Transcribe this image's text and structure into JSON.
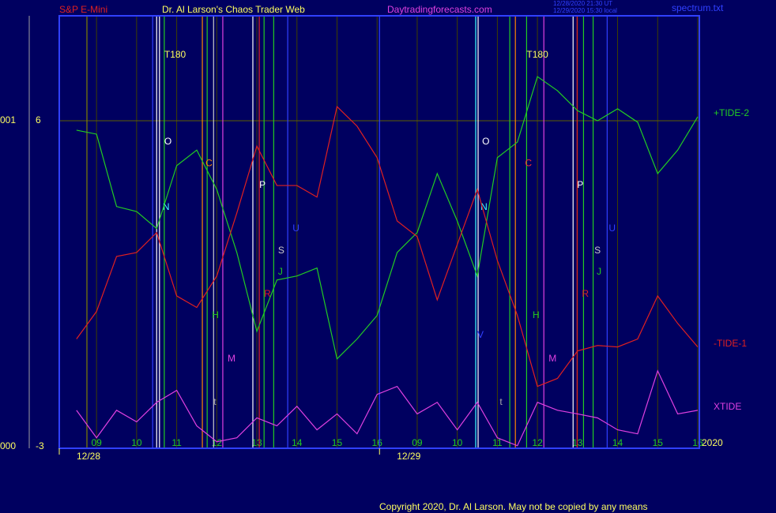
{
  "chart_data": {
    "type": "line",
    "header": {
      "left": "S&P E-Mini",
      "center": "Dr. Al Larson's Chaos Trader Web",
      "site": "Daytradingforecasts.com",
      "stamp1": "12/28/2020 21:30 UT",
      "stamp2": "12/29/2020 15:30 local",
      "file": "spectrum.txt"
    },
    "footer": "Copyright 2020, Dr. Al Larson. May not be copied by any means",
    "year": "2020",
    "xlim": [
      0.07,
      16.04
    ],
    "ylim": [
      -3.05,
      8.9
    ],
    "yticks": [
      6,
      -3
    ],
    "left_labels": [
      {
        "value": 6,
        "label": "001"
      },
      {
        "value": -3,
        "label": "000"
      }
    ],
    "grid_y": 6,
    "xticks": [
      {
        "value": 1,
        "label": "09"
      },
      {
        "value": 2,
        "label": "10"
      },
      {
        "value": 3,
        "label": "11"
      },
      {
        "value": 4,
        "label": "12"
      },
      {
        "value": 5,
        "label": "13"
      },
      {
        "value": 6,
        "label": "14"
      },
      {
        "value": 7,
        "label": "15"
      },
      {
        "value": 8,
        "label": "16"
      },
      {
        "value": 9,
        "label": "09"
      },
      {
        "value": 10,
        "label": "10"
      },
      {
        "value": 11,
        "label": "11"
      },
      {
        "value": 12,
        "label": "12"
      },
      {
        "value": 13,
        "label": "13"
      },
      {
        "value": 14,
        "label": "14"
      },
      {
        "value": 15,
        "label": "15"
      },
      {
        "value": 16,
        "label": "16"
      }
    ],
    "date_ticks": [
      {
        "value": 0.07,
        "label": "12/28"
      },
      {
        "value": 8.06,
        "label": "12/29"
      }
    ],
    "x": [
      0.5,
      1,
      1.5,
      2,
      2.5,
      3,
      3.5,
      4,
      4.5,
      5,
      5.5,
      6,
      6.5,
      7,
      7.5,
      8,
      8.5,
      9,
      9.5,
      10,
      10.5,
      11,
      11.5,
      12,
      12.5,
      13,
      13.5,
      14,
      14.5,
      15,
      15.5,
      16
    ],
    "series": [
      {
        "name": "+TIDE-2",
        "color": "#22cc22",
        "values": [
          5.74,
          5.63,
          3.63,
          3.49,
          3.02,
          4.76,
          5.19,
          4.1,
          2.36,
          0.18,
          1.6,
          1.71,
          1.93,
          -0.58,
          -0.03,
          0.62,
          2.36,
          2.91,
          4.54,
          3.23,
          1.71,
          4.98,
          5.41,
          7.22,
          6.83,
          6.28,
          6.0,
          6.33,
          5.96,
          4.54,
          5.19,
          6.11
        ]
      },
      {
        "name": "-TIDE-1",
        "color": "#e02020",
        "values": [
          -0.03,
          0.73,
          2.25,
          2.36,
          2.91,
          1.16,
          0.84,
          1.71,
          3.45,
          5.3,
          4.21,
          4.21,
          3.89,
          6.39,
          5.85,
          4.98,
          3.23,
          2.8,
          1.05,
          2.58,
          4.1,
          2.14,
          0.62,
          -1.34,
          -1.12,
          -0.36,
          -0.21,
          -0.25,
          -0.03,
          1.16,
          0.4,
          -0.25
        ]
      },
      {
        "name": "XTIDE",
        "color": "#e040e0",
        "values": [
          -2.0,
          -2.76,
          -2.0,
          -2.32,
          -1.78,
          -1.45,
          -2.43,
          -2.87,
          -2.76,
          -2.21,
          -2.43,
          -1.89,
          -2.54,
          -2.1,
          -2.65,
          -1.56,
          -1.34,
          -2.1,
          -1.78,
          -2.54,
          -1.78,
          -2.76,
          -2.98,
          -1.78,
          -2.0,
          -2.1,
          -2.21,
          -2.54,
          -2.65,
          -0.91,
          -2.1,
          -2.0
        ]
      }
    ],
    "vlines": [
      {
        "x": 0.76,
        "color": "#808000"
      },
      {
        "x": 2.4,
        "color": "#3040ff"
      },
      {
        "x": 2.5,
        "color": "#ffffff"
      },
      {
        "x": 2.57,
        "color": "#ffffff"
      },
      {
        "x": 2.69,
        "color": "#22cc22"
      },
      {
        "x": 3.64,
        "color": "#ff8800"
      },
      {
        "x": 3.76,
        "color": "#22cc22"
      },
      {
        "x": 3.92,
        "color": "#cccccc"
      },
      {
        "x": 4.15,
        "color": "#e040e0"
      },
      {
        "x": 4.9,
        "color": "#ffffff"
      },
      {
        "x": 5.06,
        "color": "#e02020"
      },
      {
        "x": 5.18,
        "color": "#22cc22"
      },
      {
        "x": 5.42,
        "color": "#22cc22"
      },
      {
        "x": 5.77,
        "color": "#3040ff"
      },
      {
        "x": 8.06,
        "color": "#3040ff"
      },
      {
        "x": 10.46,
        "color": "#40ffff"
      },
      {
        "x": 10.52,
        "color": "#ffffff"
      },
      {
        "x": 11.31,
        "color": "#22cc22"
      },
      {
        "x": 11.45,
        "color": "#ff8800"
      },
      {
        "x": 11.73,
        "color": "#22cc22"
      },
      {
        "x": 12.16,
        "color": "#e040e0"
      },
      {
        "x": 12.89,
        "color": "#ffffff"
      },
      {
        "x": 12.99,
        "color": "#e02020"
      },
      {
        "x": 13.15,
        "color": "#22cc22"
      },
      {
        "x": 13.39,
        "color": "#22cc22"
      },
      {
        "x": 13.74,
        "color": "#3040ff"
      }
    ],
    "annotations": [
      {
        "text": "T180",
        "x": 2.69,
        "y": 7.81,
        "color": "#ffff60"
      },
      {
        "text": "O",
        "x": 2.69,
        "y": 5.41,
        "color": "#ffffff"
      },
      {
        "text": "N",
        "x": 2.65,
        "y": 3.6,
        "color": "#40ffff"
      },
      {
        "text": "C",
        "x": 3.72,
        "y": 4.82,
        "color": "#ff8800"
      },
      {
        "text": "P",
        "x": 5.06,
        "y": 4.21,
        "color": "#ffffff"
      },
      {
        "text": "S",
        "x": 5.53,
        "y": 2.41,
        "color": "#cccccc"
      },
      {
        "text": "U",
        "x": 5.89,
        "y": 3.02,
        "color": "#3040ff"
      },
      {
        "text": "J",
        "x": 5.53,
        "y": 1.82,
        "color": "#22cc22"
      },
      {
        "text": "R",
        "x": 5.18,
        "y": 1.21,
        "color": "#e02020"
      },
      {
        "text": "H",
        "x": 3.88,
        "y": 0.62,
        "color": "#22cc22"
      },
      {
        "text": "M",
        "x": 4.27,
        "y": -0.58,
        "color": "#e040e0"
      },
      {
        "text": "t",
        "x": 3.92,
        "y": -1.78,
        "color": "#aaaaaa"
      },
      {
        "text": "T180",
        "x": 11.73,
        "y": 7.81,
        "color": "#ffff60"
      },
      {
        "text": "O",
        "x": 10.62,
        "y": 5.41,
        "color": "#ffffff"
      },
      {
        "text": "N",
        "x": 10.58,
        "y": 3.6,
        "color": "#40ffff"
      },
      {
        "text": "C",
        "x": 11.69,
        "y": 4.82,
        "color": "#ff3030"
      },
      {
        "text": "P",
        "x": 12.99,
        "y": 4.21,
        "color": "#ffffff"
      },
      {
        "text": "S",
        "x": 13.42,
        "y": 2.41,
        "color": "#cccccc"
      },
      {
        "text": "U",
        "x": 13.78,
        "y": 3.02,
        "color": "#3040ff"
      },
      {
        "text": "J",
        "x": 13.48,
        "y": 1.82,
        "color": "#22cc22"
      },
      {
        "text": "R",
        "x": 13.11,
        "y": 1.21,
        "color": "#e02020"
      },
      {
        "text": "H",
        "x": 11.88,
        "y": 0.62,
        "color": "#22cc22"
      },
      {
        "text": "M",
        "x": 12.28,
        "y": -0.58,
        "color": "#e040e0"
      },
      {
        "text": "V",
        "x": 10.5,
        "y": 0.07,
        "color": "#3040ff"
      },
      {
        "text": "t",
        "x": 11.06,
        "y": -1.78,
        "color": "#aaaaaa"
      }
    ]
  }
}
